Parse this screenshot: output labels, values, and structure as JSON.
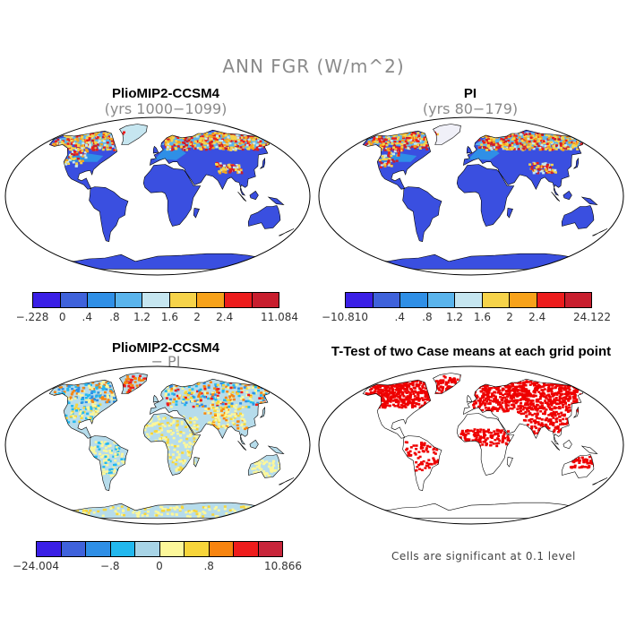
{
  "title": "ANN FGR (W/m^2)",
  "panels": [
    {
      "title": "PlioMIP2-CCSM4",
      "subtitle": "(yrs 1000−1099)"
    },
    {
      "title": "PI",
      "subtitle": "(yrs 80−179)"
    },
    {
      "title": "PlioMIP2-CCSM4",
      "subtitle": "− PI"
    },
    {
      "title": "T-Test of two Case means at each grid point",
      "subtitle": ""
    }
  ],
  "colorbars": {
    "case": {
      "colors": [
        "#3a1fe6",
        "#3f62db",
        "#2f8fe6",
        "#5ab4ec",
        "#c6e6f0",
        "#f6d34a",
        "#f7a21a",
        "#ec1c1c",
        "#c81e2e"
      ],
      "ticks": [
        "−.228",
        "0",
        ".4",
        ".8",
        "1.2",
        "1.6",
        "2",
        "2.4",
        "11.084"
      ]
    },
    "pi": {
      "colors": [
        "#3a1fe6",
        "#3f62db",
        "#2f8fe6",
        "#5ab4ec",
        "#c6e6f0",
        "#f6d34a",
        "#f7a21a",
        "#ec1c1c",
        "#c81e2e"
      ],
      "ticks": [
        "−10.810",
        ".4",
        ".8",
        "1.2",
        "1.6",
        "2",
        "2.4",
        "24.122"
      ]
    },
    "diff": {
      "colors": [
        "#3a1fe6",
        "#3f62db",
        "#2f8fe6",
        "#22b8ee",
        "#a8d4e6",
        "#fcf79a",
        "#f7d53a",
        "#f7840f",
        "#ee1c1c",
        "#c8253a"
      ],
      "ticks": [
        "−24.004",
        "−.8",
        "0",
        ".8",
        "10.866"
      ]
    }
  },
  "significance_note": "Cells are significant at 0.1 level",
  "colors": {
    "land_base_blue": "#3a4fe0",
    "significant": "#ee0000",
    "diff_base": "#b6dceb"
  }
}
